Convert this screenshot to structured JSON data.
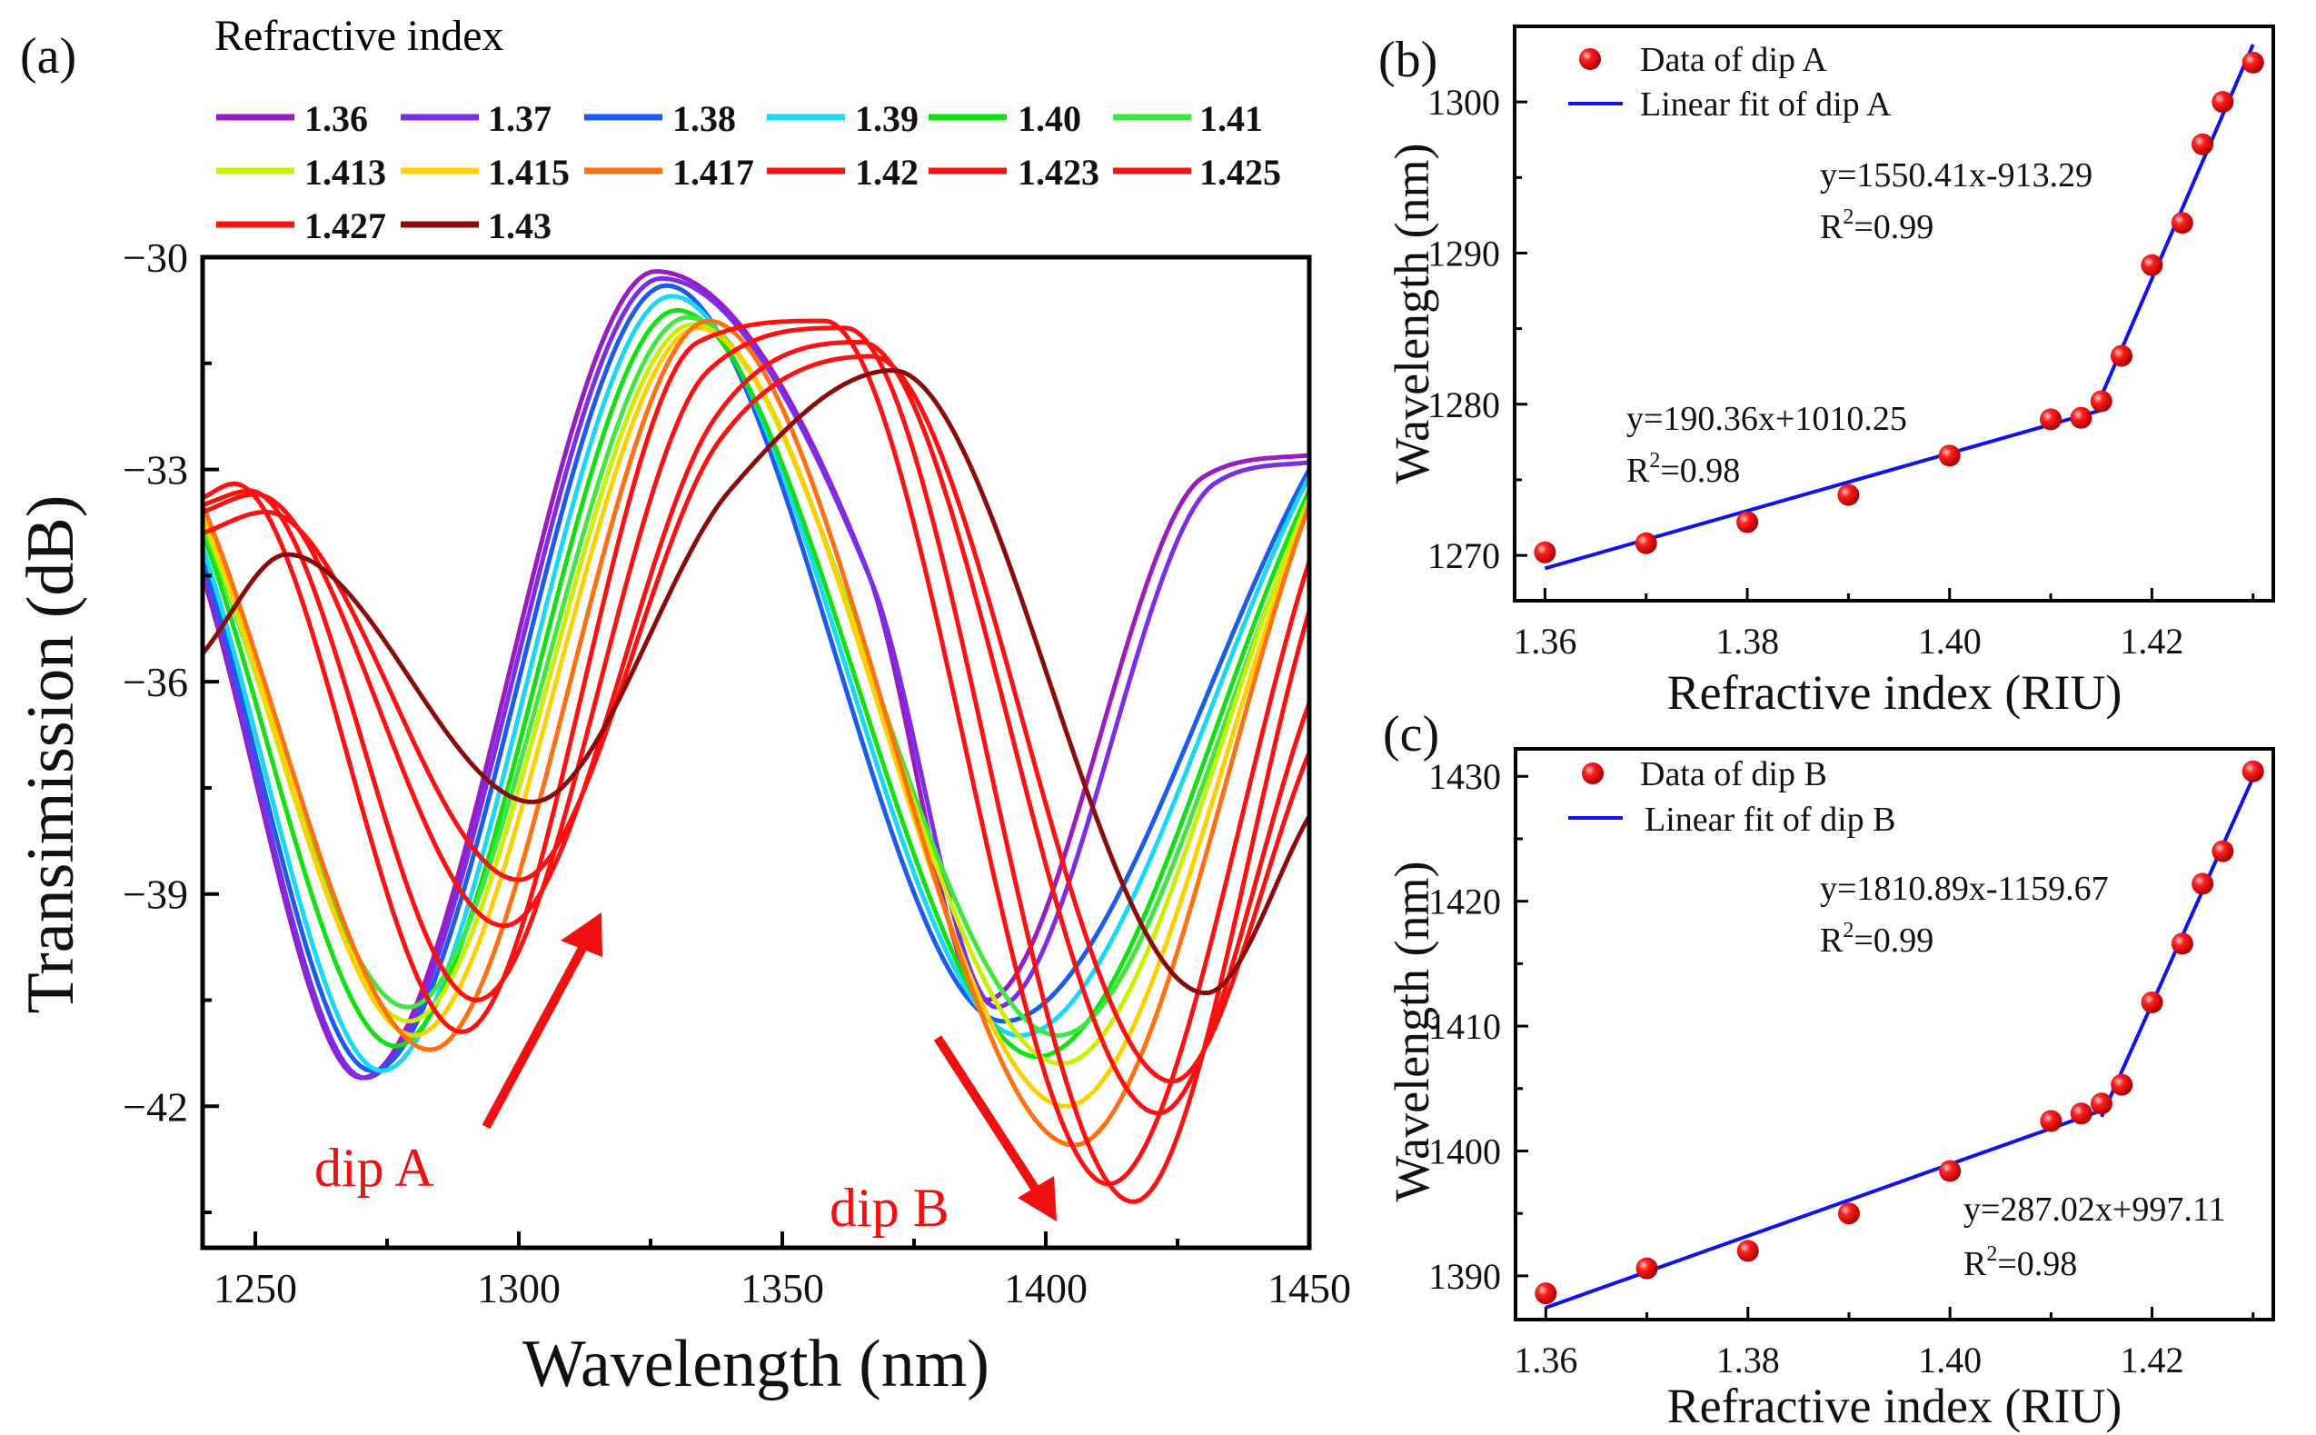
{
  "chart_data": [
    {
      "panel": "(a)",
      "type": "line",
      "xlabel": "Wavelength (nm)",
      "ylabel": "Transimission (dB)",
      "xlim": [
        1240,
        1450
      ],
      "ylim": [
        -44,
        -30
      ],
      "xticks": [
        1250,
        1300,
        1350,
        1400,
        1450
      ],
      "yticks": [
        -30,
        -33,
        -36,
        -39,
        -42
      ],
      "grid": false,
      "legend_title": "Refractive index",
      "legend_position": "top",
      "annotations": [
        {
          "text": "dip A",
          "color": "#f01010",
          "arrow": "up-right"
        },
        {
          "text": "dip B",
          "color": "#f01010",
          "arrow": "down-right"
        }
      ],
      "series": [
        {
          "name": "1.36",
          "color": "#9a1cc0",
          "points": [
            [
              1240,
              -34.5
            ],
            [
              1270.2,
              -41.6
            ],
            [
              1326,
              -30.2
            ],
            [
              1366,
              -34.4
            ],
            [
              1388.6,
              -40.5
            ],
            [
              1430,
              -33.1
            ],
            [
              1450,
              -32.8
            ]
          ]
        },
        {
          "name": "1.37",
          "color": "#7b2de8",
          "points": [
            [
              1240,
              -34.4
            ],
            [
              1270.8,
              -41.6
            ],
            [
              1327,
              -30.3
            ],
            [
              1367,
              -34.6
            ],
            [
              1390.6,
              -40.6
            ],
            [
              1432,
              -33.2
            ],
            [
              1450,
              -32.9
            ]
          ]
        },
        {
          "name": "1.38",
          "color": "#1a5cf0",
          "points": [
            [
              1240,
              -34.3
            ],
            [
              1272.2,
              -41.5
            ],
            [
              1328,
              -30.4
            ],
            [
              1392,
              -40.8
            ],
            [
              1450,
              -33.0
            ]
          ]
        },
        {
          "name": "1.39",
          "color": "#18d8f8",
          "points": [
            [
              1240,
              -34.1
            ],
            [
              1274,
              -41.5
            ],
            [
              1329,
              -30.55
            ],
            [
              1395,
              -41.0
            ],
            [
              1450,
              -33.1
            ]
          ]
        },
        {
          "name": "1.40",
          "color": "#12e012",
          "points": [
            [
              1240,
              -33.9
            ],
            [
              1276.6,
              -41.15
            ],
            [
              1330,
              -30.75
            ],
            [
              1398.4,
              -41.3
            ],
            [
              1450,
              -33.3
            ]
          ]
        },
        {
          "name": "1.41",
          "color": "#3ee83e",
          "points": [
            [
              1240,
              -33.8
            ],
            [
              1279,
              -40.6
            ],
            [
              1332,
              -30.85
            ],
            [
              1402.4,
              -41.0
            ],
            [
              1450,
              -33.5
            ]
          ]
        },
        {
          "name": "1.413",
          "color": "#c8f000",
          "points": [
            [
              1240,
              -33.7
            ],
            [
              1279.1,
              -40.8
            ],
            [
              1333,
              -30.95
            ],
            [
              1403,
              -41.4
            ],
            [
              1450,
              -33.4
            ]
          ]
        },
        {
          "name": "1.415",
          "color": "#ffd000",
          "points": [
            [
              1240,
              -33.6
            ],
            [
              1280.2,
              -41.0
            ],
            [
              1334,
              -31.0
            ],
            [
              1403.8,
              -42.0
            ],
            [
              1450,
              -33.5
            ]
          ]
        },
        {
          "name": "1.417",
          "color": "#ff7010",
          "points": [
            [
              1240,
              -33.5
            ],
            [
              1283.2,
              -41.2
            ],
            [
              1336,
              -30.9
            ],
            [
              1405.3,
              -42.55
            ],
            [
              1450,
              -33.5
            ]
          ]
        },
        {
          "name": "1.42",
          "color": "#ff1010",
          "points": [
            [
              1240,
              -33.4
            ],
            [
              1246,
              -33.2
            ],
            [
              1289.2,
              -40.95
            ],
            [
              1334,
              -31.2
            ],
            [
              1358,
              -30.9
            ],
            [
              1411.9,
              -43.1
            ],
            [
              1450,
              -34.3
            ]
          ]
        },
        {
          "name": "1.423",
          "color": "#ff1010",
          "points": [
            [
              1240,
              -33.5
            ],
            [
              1249,
              -33.3
            ],
            [
              1292,
              -40.5
            ],
            [
              1336,
              -31.6
            ],
            [
              1362,
              -31.0
            ],
            [
              1416.6,
              -43.35
            ],
            [
              1450,
              -35.0
            ]
          ]
        },
        {
          "name": "1.425",
          "color": "#ff1010",
          "points": [
            [
              1240,
              -33.6
            ],
            [
              1250,
              -33.35
            ],
            [
              1297.2,
              -39.45
            ],
            [
              1337,
              -32.3
            ],
            [
              1365,
              -31.2
            ],
            [
              1421.4,
              -42.1
            ],
            [
              1450,
              -36.3
            ]
          ]
        },
        {
          "name": "1.427",
          "color": "#ff1010",
          "points": [
            [
              1240,
              -33.9
            ],
            [
              1252,
              -33.6
            ],
            [
              1300,
              -38.8
            ],
            [
              1338,
              -32.6
            ],
            [
              1367,
              -31.4
            ],
            [
              1424,
              -41.65
            ],
            [
              1450,
              -37.0
            ]
          ]
        },
        {
          "name": "1.43",
          "color": "#8b0a0a",
          "points": [
            [
              1240,
              -35.6
            ],
            [
              1256,
              -34.2
            ],
            [
              1302.6,
              -37.7
            ],
            [
              1340,
              -33.3
            ],
            [
              1371,
              -31.6
            ],
            [
              1430.4,
              -40.4
            ],
            [
              1450,
              -37.9
            ]
          ]
        }
      ]
    },
    {
      "panel": "(b)",
      "type": "scatter",
      "xlabel": "Refractive index (RIU)",
      "ylabel": "Wavelength (nm)",
      "xlim": [
        1.357,
        1.432
      ],
      "ylim": [
        1267,
        1305
      ],
      "xticks": [
        1.36,
        1.38,
        1.4,
        1.42
      ],
      "xtick_labels": [
        "1.36",
        "1.38",
        "1.40",
        "1.42"
      ],
      "yticks": [
        1270,
        1280,
        1290,
        1300
      ],
      "grid": false,
      "legend_position": "top-left",
      "scatter": {
        "name": "Data of dip A",
        "color": "#f01010",
        "x": [
          1.36,
          1.37,
          1.38,
          1.39,
          1.4,
          1.41,
          1.413,
          1.415,
          1.417,
          1.42,
          1.423,
          1.425,
          1.427,
          1.43
        ],
        "y": [
          1270.2,
          1270.8,
          1272.2,
          1274.0,
          1276.6,
          1279.0,
          1279.1,
          1280.2,
          1283.2,
          1289.2,
          1292.0,
          1297.2,
          1300.0,
          1302.6
        ]
      },
      "fits": [
        {
          "name": "Linear fit of dip A",
          "color": "#1010f0",
          "slope": 190.36,
          "intercept": 1010.25,
          "x_range": [
            1.36,
            1.415
          ],
          "equation": "y=190.36x+1010.25",
          "r2_label": "R",
          "r2_sup": "2",
          "r2_value": "=0.98"
        },
        {
          "color": "#1010f0",
          "slope": 1550.41,
          "intercept": -913.29,
          "x_range": [
            1.415,
            1.43
          ],
          "equation": "y=1550.41x-913.29",
          "r2_label": "R",
          "r2_sup": "2",
          "r2_value": "=0.99"
        }
      ]
    },
    {
      "panel": "(c)",
      "type": "scatter",
      "xlabel": "Refractive index (RIU)",
      "ylabel": "Wavelength (nm)",
      "xlim": [
        1.357,
        1.432
      ],
      "ylim": [
        1386.5,
        1432.2
      ],
      "xticks": [
        1.36,
        1.38,
        1.4,
        1.42
      ],
      "xtick_labels": [
        "1.36",
        "1.38",
        "1.40",
        "1.42"
      ],
      "yticks": [
        1390,
        1400,
        1410,
        1420,
        1430
      ],
      "grid": false,
      "legend_position": "top-left",
      "scatter": {
        "name": "Data of dip B",
        "color": "#f01010",
        "x": [
          1.36,
          1.37,
          1.38,
          1.39,
          1.4,
          1.41,
          1.413,
          1.415,
          1.417,
          1.42,
          1.423,
          1.425,
          1.427,
          1.43
        ],
        "y": [
          1388.6,
          1390.6,
          1392.0,
          1395.0,
          1398.4,
          1402.4,
          1403.0,
          1403.8,
          1405.3,
          1411.9,
          1416.6,
          1421.4,
          1424.0,
          1430.4
        ]
      },
      "fits": [
        {
          "name": "Linear fit of dip B",
          "color": "#1010f0",
          "slope": 287.02,
          "intercept": 997.11,
          "x_range": [
            1.36,
            1.415
          ],
          "equation": "y=287.02x+997.11",
          "r2_label": "R",
          "r2_sup": "2",
          "r2_value": "=0.98"
        },
        {
          "color": "#1010f0",
          "slope": 1810.89,
          "intercept": -1159.67,
          "x_range": [
            1.415,
            1.43
          ],
          "equation": "y=1810.89x-1159.67",
          "r2_label": "R",
          "r2_sup": "2",
          "r2_value": "=0.99"
        }
      ]
    }
  ]
}
